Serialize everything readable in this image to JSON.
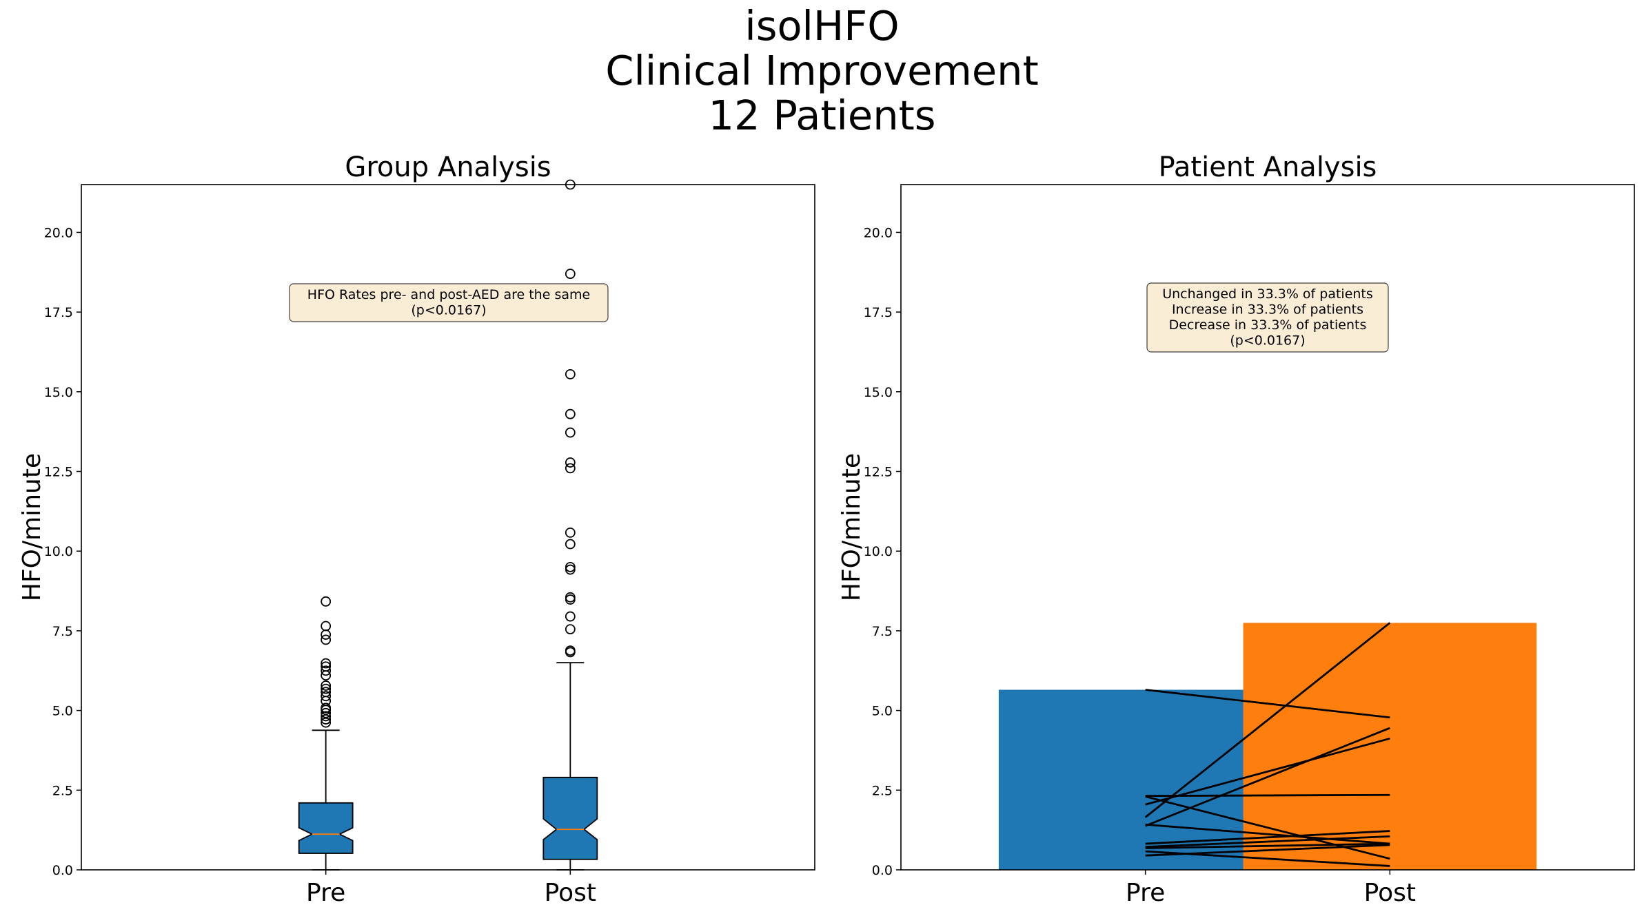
{
  "title_lines": [
    "isolHFO",
    "Clinical Improvement",
    "12 Patients"
  ],
  "colors": {
    "pre": "#1f77b4",
    "post": "#ff7f0e",
    "median": "#ff7f0e",
    "annotation_bg": "#f5deb3"
  },
  "chart_data": [
    {
      "type": "box",
      "title": "Group Analysis",
      "ylabel": "HFO/minute",
      "xlabel": "",
      "categories": [
        "Pre",
        "Post"
      ],
      "ylim": [
        0,
        21.5
      ],
      "yticks": [
        0.0,
        2.5,
        5.0,
        7.5,
        10.0,
        12.5,
        15.0,
        17.5,
        20.0
      ],
      "notched": true,
      "grid": false,
      "boxes": [
        {
          "label": "Pre",
          "whisker_low": 0.0,
          "q1": 0.52,
          "median": 1.12,
          "q3": 2.1,
          "whisker_high": 4.38,
          "notch_low": 0.92,
          "notch_high": 1.32,
          "outliers": [
            4.62,
            4.72,
            4.82,
            4.92,
            5.02,
            5.08,
            5.3,
            5.45,
            5.58,
            5.68,
            5.78,
            6.1,
            6.25,
            6.38,
            6.48,
            7.22,
            7.38,
            7.65,
            8.42
          ]
        },
        {
          "label": "Post",
          "whisker_low": 0.0,
          "q1": 0.33,
          "median": 1.27,
          "q3": 2.9,
          "whisker_high": 6.5,
          "notch_low": 0.95,
          "notch_high": 1.6,
          "outliers": [
            6.83,
            6.88,
            7.55,
            7.95,
            8.48,
            8.55,
            9.42,
            9.5,
            10.22,
            10.58,
            12.6,
            12.78,
            13.72,
            14.3,
            15.55,
            18.7,
            21.5
          ]
        }
      ],
      "annotation": [
        "HFO Rates pre- and post-AED are the same",
        "(p<0.0167)"
      ]
    },
    {
      "type": "bar",
      "title": "Patient Analysis",
      "ylabel": "HFO/minute",
      "xlabel": "",
      "categories": [
        "Pre",
        "Post"
      ],
      "values": [
        5.65,
        7.75
      ],
      "ylim": [
        0,
        21.5
      ],
      "yticks": [
        0.0,
        2.5,
        5.0,
        7.5,
        10.0,
        12.5,
        15.0,
        17.5,
        20.0
      ],
      "grid": false,
      "patients": [
        {
          "pre": 5.65,
          "post": 4.78
        },
        {
          "pre": 1.65,
          "post": 7.75
        },
        {
          "pre": 2.32,
          "post": 2.35
        },
        {
          "pre": 2.3,
          "post": 0.35
        },
        {
          "pre": 2.05,
          "post": 4.12
        },
        {
          "pre": 1.38,
          "post": 4.45
        },
        {
          "pre": 1.42,
          "post": 0.82
        },
        {
          "pre": 0.82,
          "post": 1.22
        },
        {
          "pre": 0.72,
          "post": 1.05
        },
        {
          "pre": 0.68,
          "post": 0.82
        },
        {
          "pre": 0.58,
          "post": 0.12
        },
        {
          "pre": 0.45,
          "post": 0.78
        }
      ],
      "annotation": [
        "Unchanged in 33.3% of patients",
        "Increase in 33.3% of patients",
        "Decrease in 33.3% of patients",
        "(p<0.0167)"
      ]
    }
  ]
}
